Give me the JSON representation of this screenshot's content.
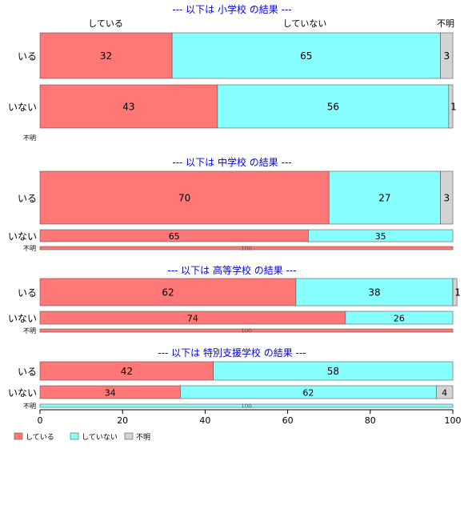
{
  "chart_data": {
    "type": "bar",
    "orientation": "horizontal",
    "stacked": "percent",
    "xlim": [
      0,
      100
    ],
    "x_ticks": [
      "0",
      "20",
      "40",
      "60",
      "80",
      "100"
    ],
    "series": [
      {
        "name": "している",
        "color": "#ff7777"
      },
      {
        "name": "していない",
        "color": "#88ffff"
      },
      {
        "name": "不明",
        "color": "#d3d3d3"
      }
    ],
    "column_labels": [
      "している",
      "していない",
      "不明"
    ],
    "panels": [
      {
        "title": "--- 以下は 小学校 の結果 ---",
        "rows": [
          {
            "label": "いる",
            "values": [
              32,
              65,
              3
            ],
            "value_labels": [
              "32",
              "65",
              "3"
            ]
          },
          {
            "label": "いない",
            "values": [
              43,
              56,
              1
            ],
            "value_labels": [
              "43",
              "56",
              "1"
            ]
          },
          {
            "label": "不明",
            "values": [],
            "value_labels": []
          }
        ]
      },
      {
        "title": "--- 以下は 中学校 の結果 ---",
        "rows": [
          {
            "label": "いる",
            "values": [
              70,
              27,
              3
            ],
            "value_labels": [
              "70",
              "27",
              "3"
            ]
          },
          {
            "label": "いない",
            "values": [
              65,
              35,
              0
            ],
            "value_labels": [
              "65",
              "35",
              ""
            ]
          },
          {
            "label": "不明",
            "values": [
              100,
              0,
              0
            ],
            "value_labels": [
              "100",
              "",
              ""
            ]
          }
        ]
      },
      {
        "title": "--- 以下は 高等学校 の結果 ---",
        "rows": [
          {
            "label": "いる",
            "values": [
              62,
              38,
              1
            ],
            "value_labels": [
              "62",
              "38",
              "1"
            ]
          },
          {
            "label": "いない",
            "values": [
              74,
              26,
              0
            ],
            "value_labels": [
              "74",
              "26",
              ""
            ]
          },
          {
            "label": "不明",
            "values": [
              100,
              0,
              0
            ],
            "value_labels": [
              "100",
              "",
              ""
            ]
          }
        ]
      },
      {
        "title": "--- 以下は 特別支援学校 の結果 ---",
        "rows": [
          {
            "label": "いる",
            "values": [
              42,
              58,
              0
            ],
            "value_labels": [
              "42",
              "58",
              ""
            ]
          },
          {
            "label": "いない",
            "values": [
              34,
              62,
              4
            ],
            "value_labels": [
              "34",
              "62",
              "4"
            ]
          },
          {
            "label": "不明",
            "values": [
              0,
              100,
              0
            ],
            "value_labels": [
              "",
              "100",
              ""
            ]
          }
        ]
      }
    ],
    "legend": {
      "position": "bottom-left",
      "entries": [
        "している",
        "していない",
        "不明"
      ]
    }
  }
}
